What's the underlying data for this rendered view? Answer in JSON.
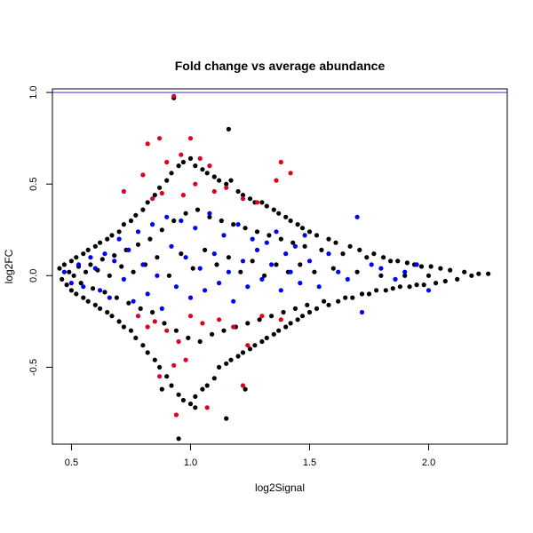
{
  "chart_data": {
    "type": "scatter",
    "title": "Fold change vs average abundance",
    "xlabel": "log2Signal",
    "ylabel": "log2FC",
    "xlim": [
      0.42,
      2.33
    ],
    "ylim": [
      -0.92,
      1.02
    ],
    "xticks": [
      0.5,
      1.0,
      1.5,
      2.0
    ],
    "xtick_labels": [
      "0.5",
      "1.0",
      "1.5",
      "2.0"
    ],
    "yticks": [
      -0.5,
      0.0,
      0.5,
      1.0
    ],
    "ytick_labels": [
      "-0.5",
      "0.0",
      "0.5",
      "1.0"
    ],
    "grid": false,
    "reference_line": {
      "y": 1.0,
      "color": "#3a3ad0"
    },
    "colors": {
      "points": "#000000",
      "highlight_blue": "#0000ee",
      "highlight_red": "#dd0022"
    },
    "series": [
      {
        "color": "#000000",
        "points": [
          [
            0.45,
            0.04
          ],
          [
            0.46,
            -0.02
          ],
          [
            0.47,
            0.06
          ],
          [
            0.48,
            -0.05
          ],
          [
            0.49,
            0.02
          ],
          [
            0.5,
            0.08
          ],
          [
            0.5,
            -0.08
          ],
          [
            0.51,
            0.0
          ],
          [
            0.52,
            0.1
          ],
          [
            0.52,
            -0.1
          ],
          [
            0.53,
            0.05
          ],
          [
            0.54,
            -0.04
          ],
          [
            0.55,
            0.12
          ],
          [
            0.55,
            -0.12
          ],
          [
            0.56,
            0.02
          ],
          [
            0.57,
            0.14
          ],
          [
            0.57,
            -0.14
          ],
          [
            0.58,
            0.06
          ],
          [
            0.59,
            -0.07
          ],
          [
            0.6,
            0.16
          ],
          [
            0.6,
            -0.16
          ],
          [
            0.61,
            0.03
          ],
          [
            0.62,
            0.18
          ],
          [
            0.62,
            -0.18
          ],
          [
            0.63,
            0.09
          ],
          [
            0.64,
            -0.09
          ],
          [
            0.65,
            0.2
          ],
          [
            0.65,
            -0.2
          ],
          [
            0.66,
            0.0
          ],
          [
            0.67,
            0.22
          ],
          [
            0.67,
            -0.22
          ],
          [
            0.68,
            0.11
          ],
          [
            0.69,
            -0.12
          ],
          [
            0.7,
            0.24
          ],
          [
            0.7,
            -0.25
          ],
          [
            0.71,
            0.05
          ],
          [
            0.72,
            0.28
          ],
          [
            0.72,
            -0.28
          ],
          [
            0.73,
            0.14
          ],
          [
            0.74,
            -0.15
          ],
          [
            0.75,
            0.3
          ],
          [
            0.75,
            -0.3
          ],
          [
            0.76,
            0.02
          ],
          [
            0.77,
            0.33
          ],
          [
            0.77,
            -0.34
          ],
          [
            0.78,
            0.17
          ],
          [
            0.79,
            -0.18
          ],
          [
            0.8,
            0.36
          ],
          [
            0.8,
            -0.38
          ],
          [
            0.81,
            0.06
          ],
          [
            0.82,
            0.4
          ],
          [
            0.82,
            -0.42
          ],
          [
            0.83,
            0.2
          ],
          [
            0.84,
            -0.2
          ],
          [
            0.85,
            0.44
          ],
          [
            0.85,
            -0.46
          ],
          [
            0.86,
            0.1
          ],
          [
            0.87,
            0.48
          ],
          [
            0.87,
            -0.5
          ],
          [
            0.88,
            0.25
          ],
          [
            0.89,
            -0.26
          ],
          [
            0.9,
            0.52
          ],
          [
            0.9,
            -0.55
          ],
          [
            0.91,
            0.0
          ],
          [
            0.92,
            0.56
          ],
          [
            0.92,
            -0.6
          ],
          [
            0.93,
            0.3
          ],
          [
            0.94,
            -0.3
          ],
          [
            0.95,
            0.6
          ],
          [
            0.95,
            -0.65
          ],
          [
            0.96,
            0.12
          ],
          [
            0.97,
            0.62
          ],
          [
            0.97,
            -0.68
          ],
          [
            0.98,
            0.34
          ],
          [
            0.99,
            -0.34
          ],
          [
            1.0,
            0.64
          ],
          [
            1.0,
            -0.7
          ],
          [
            1.01,
            0.04
          ],
          [
            1.02,
            0.6
          ],
          [
            1.02,
            -0.66
          ],
          [
            1.03,
            0.36
          ],
          [
            1.04,
            -0.36
          ],
          [
            1.05,
            0.58
          ],
          [
            1.05,
            -0.62
          ],
          [
            1.06,
            0.14
          ],
          [
            1.07,
            0.56
          ],
          [
            1.07,
            -0.6
          ],
          [
            1.08,
            0.32
          ],
          [
            1.09,
            -0.32
          ],
          [
            1.1,
            0.54
          ],
          [
            1.1,
            -0.56
          ],
          [
            1.11,
            0.06
          ],
          [
            1.12,
            0.52
          ],
          [
            1.12,
            -0.5
          ],
          [
            1.13,
            0.3
          ],
          [
            1.14,
            -0.3
          ],
          [
            1.15,
            0.5
          ],
          [
            1.15,
            -0.48
          ],
          [
            1.16,
            0.1
          ],
          [
            1.17,
            0.52
          ],
          [
            1.17,
            -0.46
          ],
          [
            1.18,
            0.28
          ],
          [
            1.19,
            -0.28
          ],
          [
            1.2,
            0.46
          ],
          [
            1.2,
            -0.44
          ],
          [
            1.21,
            0.02
          ],
          [
            1.22,
            0.44
          ],
          [
            1.22,
            -0.42
          ],
          [
            1.23,
            0.26
          ],
          [
            1.24,
            -0.26
          ],
          [
            1.25,
            0.42
          ],
          [
            1.25,
            -0.4
          ],
          [
            1.26,
            0.08
          ],
          [
            1.27,
            0.4
          ],
          [
            1.27,
            -0.38
          ],
          [
            1.28,
            0.24
          ],
          [
            1.29,
            -0.24
          ],
          [
            1.3,
            0.4
          ],
          [
            1.3,
            -0.36
          ],
          [
            1.31,
            0.0
          ],
          [
            1.32,
            0.38
          ],
          [
            1.32,
            -0.34
          ],
          [
            1.33,
            0.22
          ],
          [
            1.34,
            -0.22
          ],
          [
            1.35,
            0.36
          ],
          [
            1.35,
            -0.32
          ],
          [
            1.36,
            0.06
          ],
          [
            1.37,
            0.34
          ],
          [
            1.37,
            -0.3
          ],
          [
            1.38,
            0.2
          ],
          [
            1.39,
            -0.2
          ],
          [
            1.4,
            0.32
          ],
          [
            1.4,
            -0.28
          ],
          [
            1.41,
            0.02
          ],
          [
            1.42,
            0.3
          ],
          [
            1.42,
            -0.26
          ],
          [
            1.43,
            0.18
          ],
          [
            1.44,
            -0.18
          ],
          [
            1.45,
            0.28
          ],
          [
            1.45,
            -0.24
          ],
          [
            1.46,
            0.06
          ],
          [
            1.47,
            0.26
          ],
          [
            1.47,
            -0.22
          ],
          [
            1.48,
            0.16
          ],
          [
            1.49,
            -0.16
          ],
          [
            1.5,
            0.24
          ],
          [
            1.5,
            -0.2
          ],
          [
            1.52,
            0.02
          ],
          [
            1.53,
            0.22
          ],
          [
            1.53,
            -0.18
          ],
          [
            1.55,
            0.14
          ],
          [
            1.56,
            -0.14
          ],
          [
            1.58,
            0.2
          ],
          [
            1.58,
            -0.16
          ],
          [
            1.6,
            0.04
          ],
          [
            1.61,
            0.18
          ],
          [
            1.62,
            -0.14
          ],
          [
            1.64,
            0.12
          ],
          [
            1.65,
            -0.12
          ],
          [
            1.67,
            0.16
          ],
          [
            1.68,
            -0.12
          ],
          [
            1.7,
            0.02
          ],
          [
            1.71,
            0.14
          ],
          [
            1.72,
            -0.1
          ],
          [
            1.74,
            0.1
          ],
          [
            1.75,
            -0.1
          ],
          [
            1.77,
            0.12
          ],
          [
            1.78,
            -0.08
          ],
          [
            1.8,
            0.0
          ],
          [
            1.81,
            0.1
          ],
          [
            1.82,
            -0.08
          ],
          [
            1.84,
            0.08
          ],
          [
            1.85,
            -0.07
          ],
          [
            1.87,
            0.08
          ],
          [
            1.88,
            -0.06
          ],
          [
            1.9,
            0.0
          ],
          [
            1.91,
            0.07
          ],
          [
            1.92,
            -0.06
          ],
          [
            1.94,
            0.06
          ],
          [
            1.95,
            -0.05
          ],
          [
            1.97,
            0.05
          ],
          [
            1.98,
            -0.05
          ],
          [
            2.0,
            0.0
          ],
          [
            2.01,
            0.05
          ],
          [
            2.03,
            -0.04
          ],
          [
            2.05,
            0.04
          ],
          [
            2.07,
            -0.03
          ],
          [
            2.09,
            0.03
          ],
          [
            2.12,
            -0.02
          ],
          [
            2.15,
            0.02
          ],
          [
            2.18,
            0.0
          ],
          [
            2.21,
            0.01
          ],
          [
            2.25,
            0.01
          ],
          [
            0.93,
            0.97
          ],
          [
            1.16,
            0.8
          ],
          [
            0.95,
            -0.89
          ],
          [
            1.15,
            -0.78
          ],
          [
            1.23,
            -0.62
          ],
          [
            0.88,
            -0.62
          ],
          [
            1.02,
            -0.72
          ]
        ]
      },
      {
        "color": "#0000ee",
        "points": [
          [
            0.47,
            0.02
          ],
          [
            0.5,
            -0.04
          ],
          [
            0.53,
            0.06
          ],
          [
            0.55,
            -0.06
          ],
          [
            0.58,
            0.1
          ],
          [
            0.6,
            0.04
          ],
          [
            0.62,
            -0.08
          ],
          [
            0.64,
            0.12
          ],
          [
            0.66,
            -0.12
          ],
          [
            0.68,
            0.08
          ],
          [
            0.7,
            0.2
          ],
          [
            0.72,
            -0.02
          ],
          [
            0.74,
            0.14
          ],
          [
            0.76,
            -0.14
          ],
          [
            0.78,
            0.24
          ],
          [
            0.8,
            0.06
          ],
          [
            0.82,
            -0.1
          ],
          [
            0.84,
            0.28
          ],
          [
            0.86,
            0.0
          ],
          [
            0.88,
            -0.18
          ],
          [
            0.9,
            0.32
          ],
          [
            0.92,
            0.16
          ],
          [
            0.94,
            -0.06
          ],
          [
            0.96,
            0.3
          ],
          [
            0.98,
            0.1
          ],
          [
            1.0,
            -0.12
          ],
          [
            1.02,
            0.26
          ],
          [
            1.04,
            0.04
          ],
          [
            1.06,
            -0.08
          ],
          [
            1.08,
            0.34
          ],
          [
            1.1,
            0.12
          ],
          [
            1.12,
            -0.04
          ],
          [
            1.14,
            0.22
          ],
          [
            1.16,
            0.02
          ],
          [
            1.18,
            -0.14
          ],
          [
            1.2,
            0.28
          ],
          [
            1.22,
            0.08
          ],
          [
            1.24,
            -0.06
          ],
          [
            1.26,
            0.2
          ],
          [
            1.28,
            0.14
          ],
          [
            1.3,
            -0.02
          ],
          [
            1.32,
            0.18
          ],
          [
            1.34,
            0.06
          ],
          [
            1.36,
            0.24
          ],
          [
            1.38,
            -0.08
          ],
          [
            1.4,
            0.12
          ],
          [
            1.42,
            0.02
          ],
          [
            1.44,
            0.16
          ],
          [
            1.46,
            -0.04
          ],
          [
            1.48,
            0.22
          ],
          [
            1.5,
            0.08
          ],
          [
            1.54,
            -0.06
          ],
          [
            1.58,
            0.12
          ],
          [
            1.62,
            0.02
          ],
          [
            1.66,
            -0.02
          ],
          [
            1.7,
            0.32
          ],
          [
            1.72,
            -0.2
          ],
          [
            1.76,
            0.06
          ],
          [
            1.8,
            0.04
          ],
          [
            1.86,
            -0.02
          ],
          [
            1.9,
            0.02
          ],
          [
            1.95,
            0.06
          ],
          [
            2.0,
            -0.08
          ]
        ]
      },
      {
        "color": "#dd0022",
        "points": [
          [
            0.93,
            0.98
          ],
          [
            0.82,
            0.72
          ],
          [
            0.87,
            0.75
          ],
          [
            1.0,
            0.75
          ],
          [
            0.96,
            0.66
          ],
          [
            1.04,
            0.64
          ],
          [
            0.9,
            0.62
          ],
          [
            1.08,
            0.6
          ],
          [
            0.8,
            0.55
          ],
          [
            0.88,
            0.45
          ],
          [
            0.72,
            0.46
          ],
          [
            1.38,
            0.62
          ],
          [
            1.42,
            0.56
          ],
          [
            1.36,
            0.52
          ],
          [
            1.02,
            0.5
          ],
          [
            1.15,
            0.48
          ],
          [
            0.84,
            0.42
          ],
          [
            0.97,
            0.44
          ],
          [
            1.22,
            0.42
          ],
          [
            1.28,
            0.4
          ],
          [
            1.1,
            0.46
          ],
          [
            0.78,
            -0.22
          ],
          [
            0.82,
            -0.28
          ],
          [
            0.85,
            -0.25
          ],
          [
            0.9,
            -0.3
          ],
          [
            0.95,
            -0.36
          ],
          [
            1.0,
            -0.22
          ],
          [
            1.05,
            -0.26
          ],
          [
            1.12,
            -0.24
          ],
          [
            1.18,
            -0.28
          ],
          [
            1.24,
            -0.38
          ],
          [
            1.3,
            -0.22
          ],
          [
            1.38,
            -0.24
          ],
          [
            0.98,
            -0.46
          ],
          [
            0.93,
            -0.49
          ],
          [
            0.87,
            -0.55
          ],
          [
            1.22,
            -0.6
          ],
          [
            0.94,
            -0.76
          ],
          [
            1.07,
            -0.72
          ]
        ]
      }
    ]
  }
}
